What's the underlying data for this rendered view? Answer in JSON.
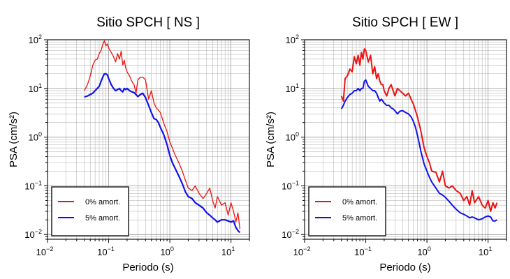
{
  "chart_data": [
    {
      "type": "line",
      "title": "Sitio SPCH [ NS ]",
      "xlabel": "Periodo (s)",
      "ylabel": "PSA (cm/s²)",
      "xscale": "log",
      "yscale": "log",
      "xlim": [
        0.01,
        20
      ],
      "ylim": [
        0.008,
        100
      ],
      "xticks": [
        {
          "value": 0.01,
          "base": "10",
          "exp": "−2"
        },
        {
          "value": 0.1,
          "base": "10",
          "exp": "−1"
        },
        {
          "value": 1,
          "base": "10",
          "exp": "0"
        },
        {
          "value": 10,
          "base": "10",
          "exp": "1"
        }
      ],
      "yticks": [
        {
          "value": 0.01,
          "base": "10",
          "exp": "−2"
        },
        {
          "value": 0.1,
          "base": "10",
          "exp": "−1"
        },
        {
          "value": 1,
          "base": "10",
          "exp": "0"
        },
        {
          "value": 10,
          "base": "10",
          "exp": "1"
        },
        {
          "value": 100,
          "base": "10",
          "exp": "2"
        }
      ],
      "grid": true,
      "legend_position": "bottom-left",
      "series": [
        {
          "name": "0% amort.",
          "color": "#ee1111",
          "width": 1.3,
          "x": [
            0.04,
            0.045,
            0.05,
            0.055,
            0.06,
            0.065,
            0.07,
            0.075,
            0.08,
            0.085,
            0.09,
            0.095,
            0.1,
            0.11,
            0.12,
            0.13,
            0.14,
            0.15,
            0.16,
            0.17,
            0.18,
            0.19,
            0.2,
            0.22,
            0.24,
            0.26,
            0.28,
            0.3,
            0.33,
            0.36,
            0.4,
            0.45,
            0.5,
            0.55,
            0.6,
            0.65,
            0.7,
            0.8,
            0.9,
            1.0,
            1.1,
            1.2,
            1.4,
            1.6,
            1.8,
            2.0,
            2.3,
            2.6,
            3.0,
            3.5,
            4.0,
            4.5,
            5.0,
            5.5,
            6.0,
            7.0,
            8.0,
            9.0,
            10,
            11,
            12,
            13,
            14
          ],
          "y": [
            9,
            12,
            18,
            30,
            38,
            40,
            52,
            60,
            80,
            95,
            75,
            82,
            68,
            55,
            45,
            35,
            52,
            40,
            58,
            30,
            38,
            26,
            22,
            18,
            14,
            12,
            8,
            15,
            17,
            17,
            15,
            6,
            9,
            5,
            4,
            3.6,
            3.2,
            1.9,
            1.3,
            0.8,
            0.6,
            0.45,
            0.3,
            0.2,
            0.13,
            0.09,
            0.08,
            0.1,
            0.07,
            0.055,
            0.07,
            0.09,
            0.05,
            0.035,
            0.06,
            0.04,
            0.045,
            0.025,
            0.045,
            0.03,
            0.018,
            0.028,
            0.013
          ]
        },
        {
          "name": "5% amort.",
          "color": "#1111ee",
          "width": 2.2,
          "x": [
            0.04,
            0.045,
            0.05,
            0.055,
            0.06,
            0.065,
            0.07,
            0.075,
            0.08,
            0.085,
            0.09,
            0.095,
            0.1,
            0.11,
            0.12,
            0.13,
            0.14,
            0.15,
            0.16,
            0.17,
            0.18,
            0.19,
            0.2,
            0.22,
            0.24,
            0.26,
            0.28,
            0.3,
            0.33,
            0.36,
            0.4,
            0.45,
            0.5,
            0.55,
            0.6,
            0.65,
            0.7,
            0.8,
            0.9,
            1.0,
            1.1,
            1.2,
            1.4,
            1.6,
            1.8,
            2.0,
            2.3,
            2.6,
            3.0,
            3.5,
            4.0,
            4.5,
            5.0,
            5.5,
            6.0,
            7.0,
            8.0,
            9.0,
            10,
            11,
            12,
            13,
            14
          ],
          "y": [
            6.7,
            7,
            7.5,
            8,
            9,
            10,
            11,
            14,
            17,
            20,
            20,
            19,
            16,
            12,
            10,
            9,
            9.5,
            10,
            9,
            8.5,
            10,
            9.5,
            10,
            9,
            8.5,
            8.2,
            7.5,
            6.8,
            7.5,
            8,
            6.5,
            4.5,
            3.2,
            2.4,
            2.3,
            2.0,
            1.6,
            1.1,
            0.7,
            0.42,
            0.3,
            0.24,
            0.16,
            0.11,
            0.075,
            0.06,
            0.055,
            0.045,
            0.04,
            0.035,
            0.028,
            0.025,
            0.022,
            0.02,
            0.018,
            0.02,
            0.02,
            0.019,
            0.018,
            0.019,
            0.014,
            0.012,
            0.011
          ]
        }
      ]
    },
    {
      "type": "line",
      "title": "Sitio SPCH [ EW ]",
      "xlabel": "Periodo (s)",
      "ylabel": "PSA (cm/s²)",
      "xscale": "log",
      "yscale": "log",
      "xlim": [
        0.01,
        20
      ],
      "ylim": [
        0.008,
        100
      ],
      "xticks": [
        {
          "value": 0.01,
          "base": "10",
          "exp": "−2"
        },
        {
          "value": 0.1,
          "base": "10",
          "exp": "−1"
        },
        {
          "value": 1,
          "base": "10",
          "exp": "0"
        },
        {
          "value": 10,
          "base": "10",
          "exp": "1"
        }
      ],
      "yticks": [
        {
          "value": 0.01,
          "base": "10",
          "exp": "−2"
        },
        {
          "value": 0.1,
          "base": "10",
          "exp": "−1"
        },
        {
          "value": 1,
          "base": "10",
          "exp": "0"
        },
        {
          "value": 10,
          "base": "10",
          "exp": "1"
        },
        {
          "value": 100,
          "base": "10",
          "exp": "2"
        }
      ],
      "grid": true,
      "legend_position": "bottom-left",
      "series": [
        {
          "name": "0% amort.",
          "color": "#ee1111",
          "width": 2.0,
          "x": [
            0.04,
            0.043,
            0.046,
            0.05,
            0.055,
            0.06,
            0.065,
            0.07,
            0.075,
            0.08,
            0.085,
            0.09,
            0.095,
            0.1,
            0.11,
            0.12,
            0.13,
            0.14,
            0.15,
            0.16,
            0.17,
            0.18,
            0.19,
            0.2,
            0.22,
            0.24,
            0.26,
            0.28,
            0.3,
            0.33,
            0.36,
            0.4,
            0.45,
            0.5,
            0.55,
            0.6,
            0.65,
            0.7,
            0.8,
            0.9,
            1.0,
            1.1,
            1.2,
            1.4,
            1.6,
            1.8,
            2.0,
            2.3,
            2.6,
            3.0,
            3.5,
            4.0,
            4.5,
            5.0,
            5.5,
            6.0,
            7.0,
            8.0,
            9.0,
            10,
            11,
            12,
            13,
            14
          ],
          "y": [
            7,
            5.5,
            16,
            18,
            25,
            22,
            45,
            32,
            48,
            30,
            55,
            40,
            65,
            60,
            35,
            48,
            20,
            28,
            16,
            20,
            14,
            12,
            12,
            9,
            7,
            10,
            12,
            9,
            7,
            10,
            9,
            8,
            7,
            8,
            6,
            4.8,
            3.5,
            2.6,
            1.3,
            0.6,
            0.4,
            0.3,
            0.2,
            0.19,
            0.12,
            0.2,
            0.1,
            0.09,
            0.1,
            0.08,
            0.07,
            0.05,
            0.06,
            0.04,
            0.08,
            0.045,
            0.06,
            0.04,
            0.035,
            0.05,
            0.03,
            0.045,
            0.035,
            0.045
          ]
        },
        {
          "name": "5% amort.",
          "color": "#1111ee",
          "width": 2.0,
          "x": [
            0.04,
            0.043,
            0.046,
            0.05,
            0.055,
            0.06,
            0.065,
            0.07,
            0.075,
            0.08,
            0.085,
            0.09,
            0.095,
            0.1,
            0.11,
            0.12,
            0.13,
            0.14,
            0.15,
            0.16,
            0.17,
            0.18,
            0.19,
            0.2,
            0.22,
            0.24,
            0.26,
            0.28,
            0.3,
            0.33,
            0.36,
            0.4,
            0.45,
            0.5,
            0.55,
            0.6,
            0.65,
            0.7,
            0.8,
            0.9,
            1.0,
            1.1,
            1.2,
            1.4,
            1.6,
            1.8,
            2.0,
            2.3,
            2.6,
            3.0,
            3.5,
            4.0,
            4.5,
            5.0,
            5.5,
            6.0,
            7.0,
            8.0,
            9.0,
            10,
            11,
            12,
            13,
            14
          ],
          "y": [
            3.8,
            4.5,
            5.5,
            6.5,
            7.5,
            8,
            9,
            9,
            10,
            9,
            10,
            10,
            14,
            15,
            11,
            10,
            9,
            9,
            8,
            6.5,
            5.5,
            6,
            5.5,
            5,
            4.5,
            4.5,
            4,
            3.8,
            3.5,
            3,
            3.4,
            3.5,
            3.2,
            3.0,
            2.6,
            2.1,
            1.6,
            1.1,
            0.5,
            0.28,
            0.2,
            0.15,
            0.12,
            0.09,
            0.07,
            0.065,
            0.058,
            0.048,
            0.04,
            0.033,
            0.028,
            0.026,
            0.024,
            0.022,
            0.023,
            0.022,
            0.02,
            0.021,
            0.023,
            0.024,
            0.023,
            0.019,
            0.019,
            0.02
          ]
        }
      ]
    }
  ]
}
